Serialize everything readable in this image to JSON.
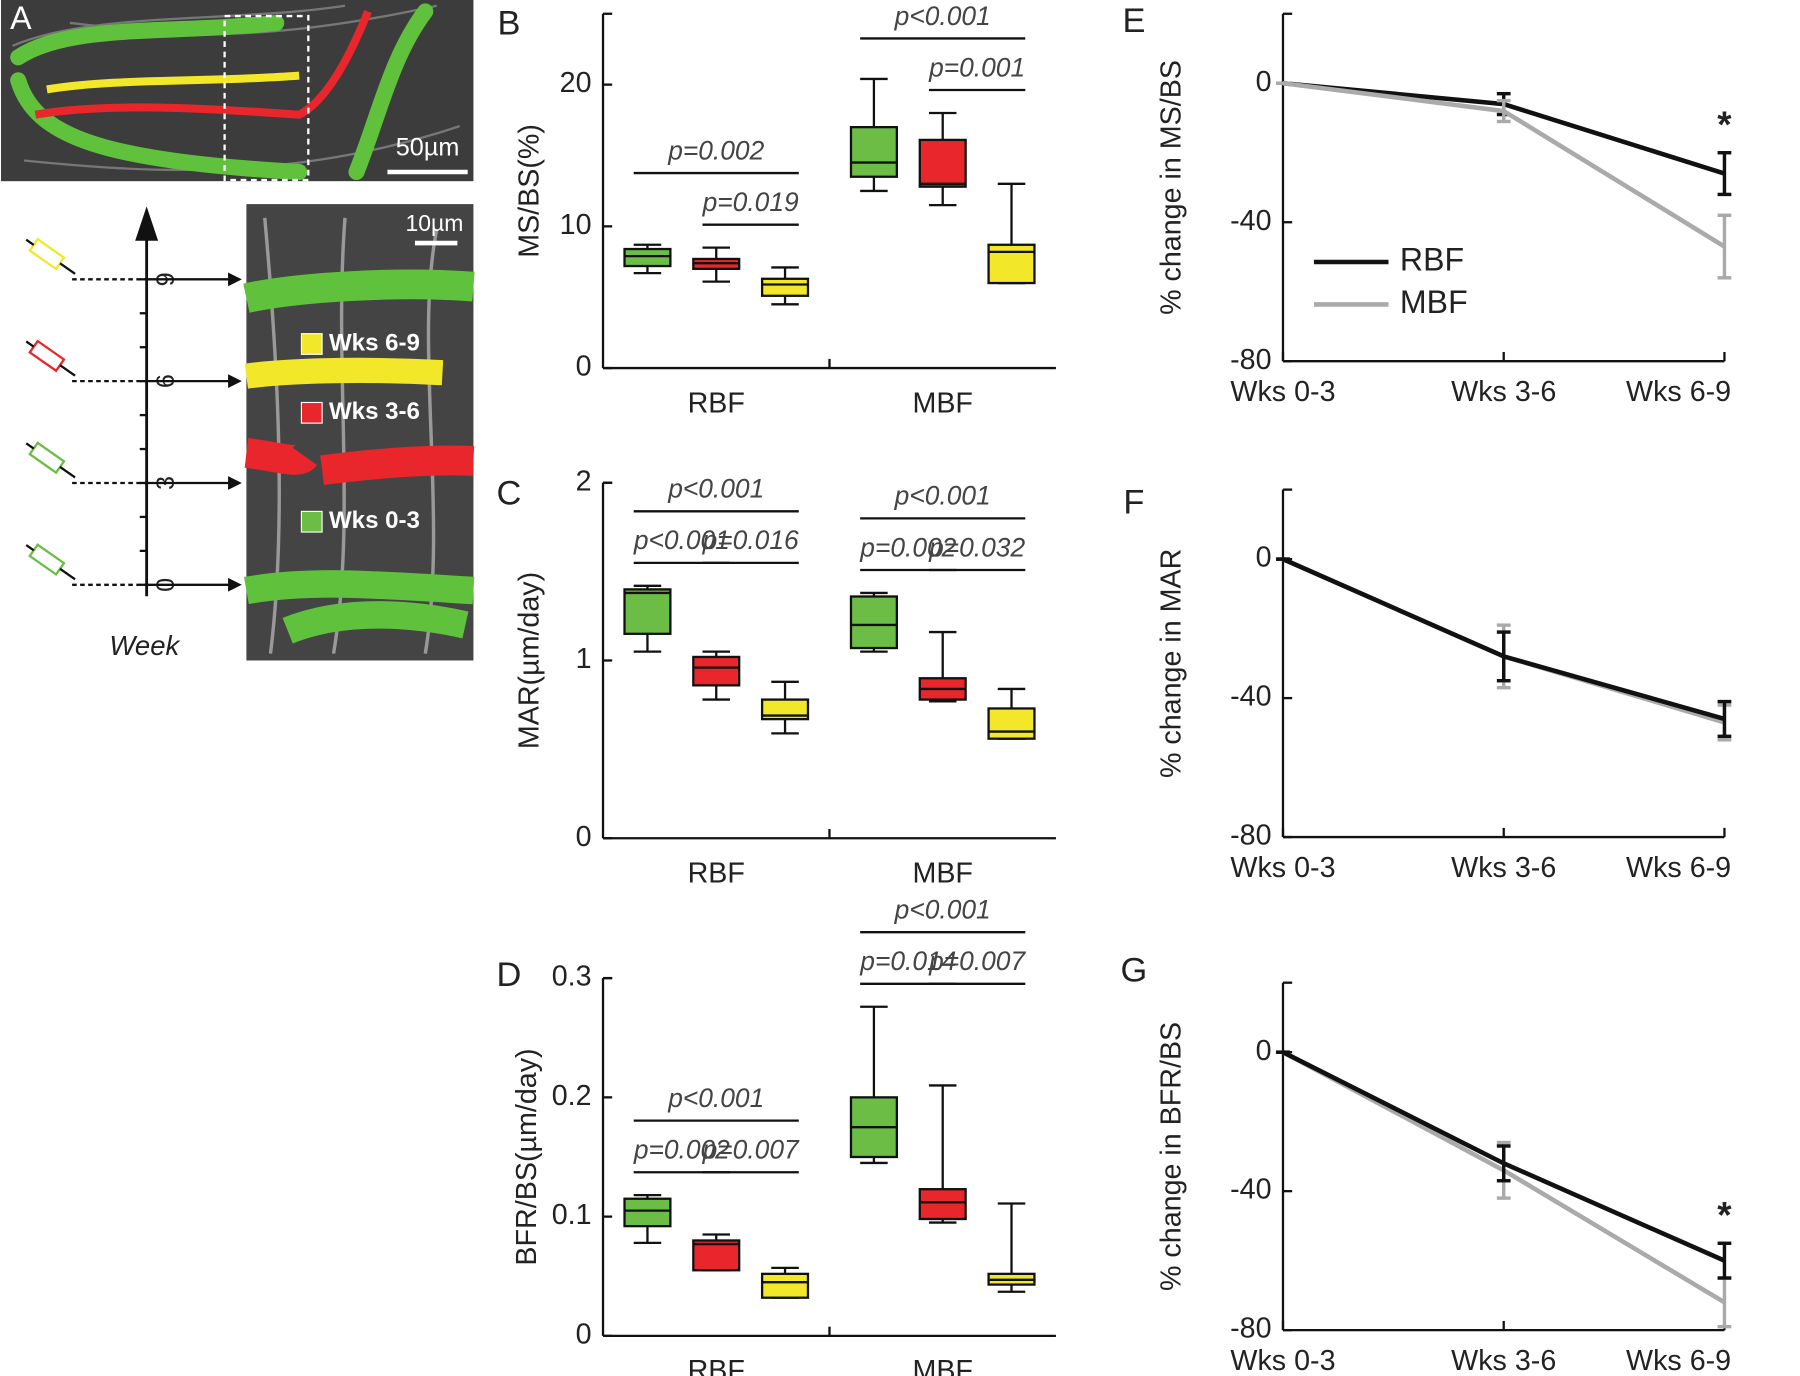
{
  "image_panel": {
    "label": "A",
    "scale_bar_top": "50µm",
    "scale_bar_inset": "10µm",
    "legend": [
      {
        "text": "Wks 6-9",
        "color": "#f2e829"
      },
      {
        "text": "Wks 3-6",
        "color": "#e8262b"
      },
      {
        "text": "Wks 0-3",
        "color": "#6cbd45"
      }
    ],
    "week_ticks": [
      0,
      3,
      6,
      9
    ],
    "week_axis_label": "Week"
  },
  "chart_data": [
    {
      "type": "box",
      "panel": "B",
      "y_label": "MS/BS(%)",
      "categories": [
        "RBF",
        "MBF"
      ],
      "ylim": [
        0,
        25
      ],
      "yticks": [
        0,
        10,
        20
      ],
      "series": [
        {
          "color": "#6cbd45",
          "min": [
            6.7,
            12.5
          ],
          "q1": [
            7.2,
            13.5
          ],
          "median": [
            7.9,
            14.5
          ],
          "q3": [
            8.4,
            17.0
          ],
          "max": [
            8.7,
            20.4
          ]
        },
        {
          "color": "#e8262b",
          "min": [
            6.1,
            11.5
          ],
          "q1": [
            7.0,
            12.8
          ],
          "median": [
            7.4,
            13.0
          ],
          "q3": [
            7.7,
            16.1
          ],
          "max": [
            8.5,
            18.0
          ]
        },
        {
          "color": "#f2e829",
          "min": [
            4.5,
            6.0
          ],
          "q1": [
            5.1,
            6.0
          ],
          "median": [
            5.9,
            8.2
          ],
          "q3": [
            6.3,
            8.7
          ],
          "max": [
            7.1,
            13.0
          ]
        }
      ],
      "significance": [
        {
          "category": 0,
          "between": [
            0,
            2
          ],
          "label": "p=0.002"
        },
        {
          "category": 0,
          "between": [
            1,
            2
          ],
          "label": "p=0.019"
        },
        {
          "category": 1,
          "between": [
            0,
            2
          ],
          "label": "p<0.001"
        },
        {
          "category": 1,
          "between": [
            1,
            2
          ],
          "label": "p=0.001"
        }
      ]
    },
    {
      "type": "box",
      "panel": "C",
      "y_label": "MAR(µm/day)",
      "categories": [
        "RBF",
        "MBF"
      ],
      "ylim": [
        0,
        2
      ],
      "yticks": [
        0,
        1,
        2
      ],
      "series": [
        {
          "color": "#6cbd45",
          "min": [
            1.05,
            1.05
          ],
          "q1": [
            1.15,
            1.07
          ],
          "median": [
            1.38,
            1.2
          ],
          "q3": [
            1.4,
            1.36
          ],
          "max": [
            1.42,
            1.38
          ]
        },
        {
          "color": "#e8262b",
          "min": [
            0.78,
            0.77
          ],
          "q1": [
            0.86,
            0.78
          ],
          "median": [
            0.96,
            0.84
          ],
          "q3": [
            1.02,
            0.9
          ],
          "max": [
            1.05,
            1.16
          ]
        },
        {
          "color": "#f2e829",
          "min": [
            0.59,
            0.56
          ],
          "q1": [
            0.67,
            0.56
          ],
          "median": [
            0.69,
            0.6
          ],
          "q3": [
            0.78,
            0.73
          ],
          "max": [
            0.88,
            0.84
          ]
        }
      ],
      "significance": [
        {
          "category": 0,
          "between": [
            0,
            2
          ],
          "label": "p<0.001"
        },
        {
          "category": 0,
          "between": [
            0,
            1
          ],
          "label": "p<0.001"
        },
        {
          "category": 0,
          "between": [
            1,
            2
          ],
          "label": "p=0.016"
        },
        {
          "category": 1,
          "between": [
            0,
            2
          ],
          "label": "p<0.001"
        },
        {
          "category": 1,
          "between": [
            0,
            1
          ],
          "label": "p=0.002"
        },
        {
          "category": 1,
          "between": [
            1,
            2
          ],
          "label": "p=0.032"
        }
      ]
    },
    {
      "type": "box",
      "panel": "D",
      "y_label": "BFR/BS(µm/day)",
      "categories": [
        "RBF",
        "MBF"
      ],
      "ylim": [
        0,
        0.3
      ],
      "yticks": [
        0,
        0.1,
        0.2,
        0.3
      ],
      "series": [
        {
          "color": "#6cbd45",
          "min": [
            0.078,
            0.145
          ],
          "q1": [
            0.092,
            0.15
          ],
          "median": [
            0.105,
            0.175
          ],
          "q3": [
            0.115,
            0.2
          ],
          "max": [
            0.118,
            0.276
          ]
        },
        {
          "color": "#e8262b",
          "min": [
            0.055,
            0.095
          ],
          "q1": [
            0.055,
            0.098
          ],
          "median": [
            0.077,
            0.112
          ],
          "q3": [
            0.08,
            0.123
          ],
          "max": [
            0.085,
            0.21
          ]
        },
        {
          "color": "#f2e829",
          "min": [
            0.032,
            0.037
          ],
          "q1": [
            0.032,
            0.043
          ],
          "median": [
            0.045,
            0.047
          ],
          "q3": [
            0.052,
            0.052
          ],
          "max": [
            0.057,
            0.111
          ]
        }
      ],
      "significance": [
        {
          "category": 0,
          "between": [
            0,
            2
          ],
          "label": "p<0.001"
        },
        {
          "category": 0,
          "between": [
            0,
            1
          ],
          "label": "p=0.002"
        },
        {
          "category": 0,
          "between": [
            1,
            2
          ],
          "label": "p=0.007"
        },
        {
          "category": 1,
          "between": [
            0,
            2
          ],
          "label": "p<0.001"
        },
        {
          "category": 1,
          "between": [
            0,
            1
          ],
          "label": "p=0.014"
        },
        {
          "category": 1,
          "between": [
            1,
            2
          ],
          "label": "p=0.007"
        }
      ]
    },
    {
      "type": "line",
      "panel": "E",
      "y_label": "% change in MS/BS",
      "categories": [
        "Wks 0-3",
        "Wks 3-6",
        "Wks 6-9"
      ],
      "ylim": [
        -80,
        20
      ],
      "yticks": [
        -80,
        -40,
        0
      ],
      "legend": "center left",
      "series": [
        {
          "name": "RBF",
          "color": "#111111",
          "values": [
            0,
            -6,
            -26
          ],
          "errors": [
            0,
            3,
            6
          ]
        },
        {
          "name": "MBF",
          "color": "#aaaaaa",
          "values": [
            0,
            -8,
            -47
          ],
          "errors": [
            0,
            3,
            9
          ]
        }
      ],
      "annotations": [
        {
          "text": "*",
          "category": 2
        }
      ]
    },
    {
      "type": "line",
      "panel": "F",
      "y_label": "% change in MAR",
      "categories": [
        "Wks 0-3",
        "Wks 3-6",
        "Wks 6-9"
      ],
      "ylim": [
        -80,
        20
      ],
      "yticks": [
        -80,
        -40,
        0
      ],
      "series": [
        {
          "color": "#aaaaaa",
          "values": [
            0,
            -28,
            -47
          ],
          "errors": [
            0,
            9,
            5
          ]
        },
        {
          "color": "#111111",
          "values": [
            0,
            -28,
            -46
          ],
          "errors": [
            0,
            7,
            5
          ]
        }
      ]
    },
    {
      "type": "line",
      "panel": "G",
      "y_label": "% change in BFR/BS",
      "categories": [
        "Wks 0-3",
        "Wks 3-6",
        "Wks 6-9"
      ],
      "ylim": [
        -80,
        20
      ],
      "yticks": [
        -80,
        -40,
        0
      ],
      "series": [
        {
          "color": "#aaaaaa",
          "values": [
            0,
            -34,
            -72
          ],
          "errors": [
            0,
            8,
            7
          ]
        },
        {
          "color": "#111111",
          "values": [
            0,
            -32,
            -60
          ],
          "errors": [
            0,
            5,
            5
          ]
        }
      ],
      "annotations": [
        {
          "text": "*",
          "category": 2
        }
      ]
    }
  ]
}
